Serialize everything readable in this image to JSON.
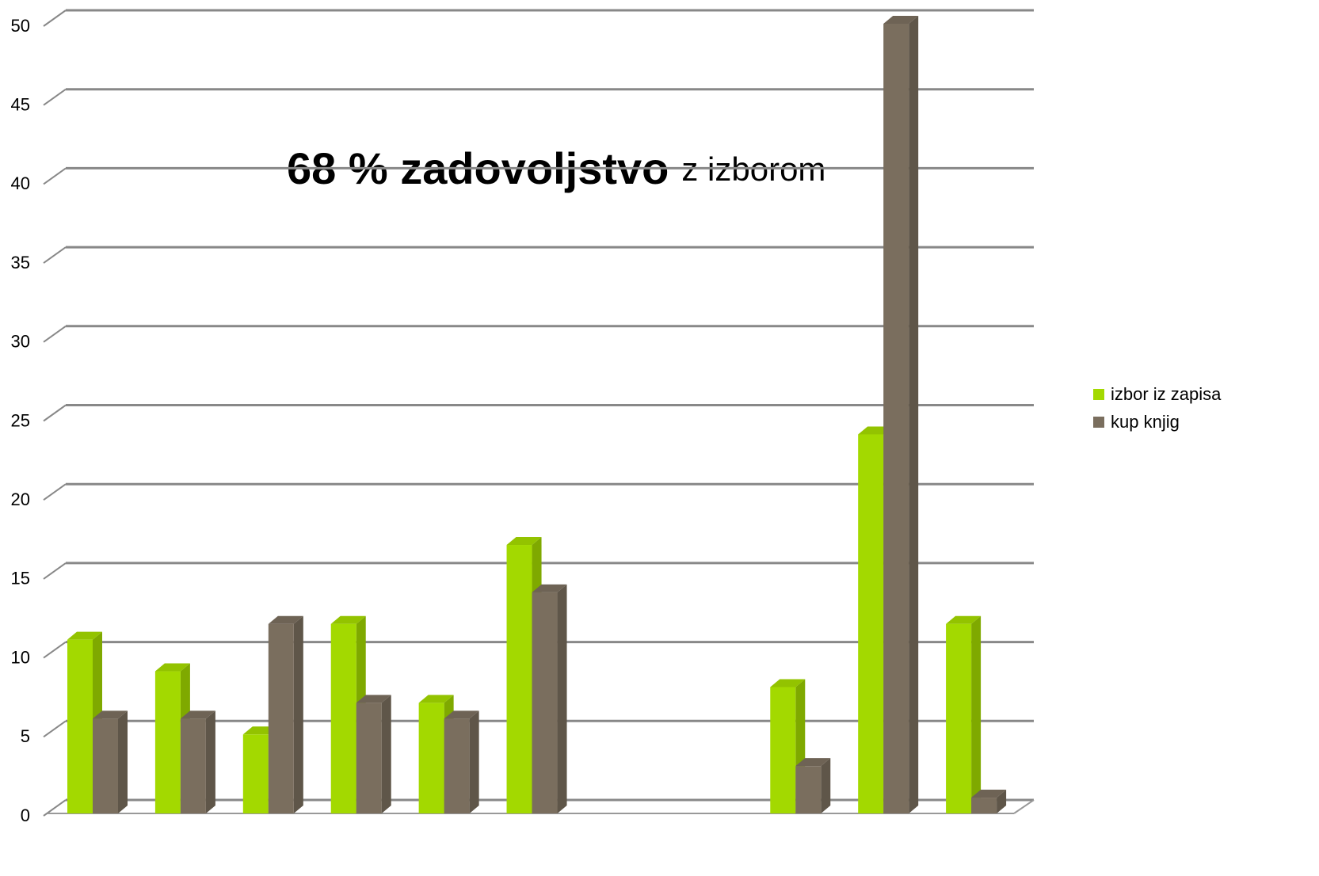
{
  "chart_data": {
    "type": "bar3d",
    "annotation_bold": "68 % zadovoljstvo",
    "annotation": "z izborom",
    "categories": [
      null,
      null,
      null,
      null,
      null,
      null,
      null,
      null,
      null,
      null,
      null
    ],
    "series": [
      {
        "name": "izbor iz zapisa",
        "color": "#a3d900",
        "values": [
          11,
          9,
          5,
          12,
          7,
          17,
          null,
          null,
          8,
          24,
          12
        ]
      },
      {
        "name": "kup knjig",
        "color": "#7a6e5e",
        "values": [
          6,
          6,
          12,
          7,
          6,
          14,
          null,
          null,
          3,
          50,
          1
        ]
      }
    ],
    "ylim": [
      0,
      50
    ],
    "yticks": [
      0,
      5,
      10,
      15,
      20,
      25,
      30,
      35,
      40,
      45,
      50
    ],
    "grid": true,
    "legend": "right"
  }
}
